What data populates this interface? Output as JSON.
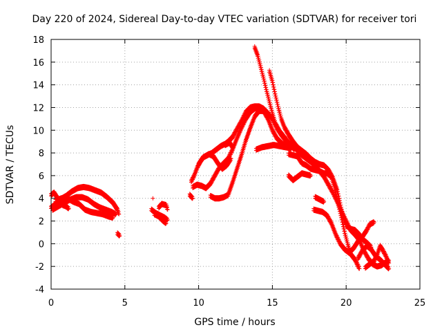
{
  "chart_data": {
    "type": "scatter",
    "title": "Day 220 of 2024, Sidereal Day-to-day VTEC variation (SDTVAR) for receiver tori",
    "xlabel": "GPS time / hours",
    "ylabel": "SDTVAR / TECUs",
    "xlim": [
      0,
      25
    ],
    "ylim": [
      -4,
      18
    ],
    "xticks": [
      0,
      5,
      10,
      15,
      20,
      25
    ],
    "yticks": [
      -4,
      -2,
      0,
      2,
      4,
      6,
      8,
      10,
      12,
      14,
      16,
      18
    ],
    "grid": true,
    "marker": "plus",
    "color": "#ff0000",
    "series": [
      {
        "traces": [
          [
            [
              0.0,
              3.2
            ],
            [
              0.3,
              3.5
            ],
            [
              0.6,
              3.9
            ],
            [
              1.0,
              4.2
            ],
            [
              1.4,
              4.6
            ],
            [
              1.8,
              4.9
            ],
            [
              2.2,
              5.0
            ],
            [
              2.6,
              4.9
            ],
            [
              3.0,
              4.7
            ],
            [
              3.4,
              4.5
            ],
            [
              3.8,
              4.1
            ],
            [
              4.2,
              3.6
            ],
            [
              4.5,
              3.0
            ],
            [
              4.6,
              2.6
            ]
          ],
          [
            [
              0.1,
              3.0
            ],
            [
              0.5,
              3.3
            ],
            [
              0.9,
              3.6
            ],
            [
              1.3,
              3.9
            ],
            [
              1.7,
              4.1
            ],
            [
              2.1,
              4.1
            ],
            [
              2.5,
              3.9
            ],
            [
              2.9,
              3.5
            ],
            [
              3.3,
              3.2
            ],
            [
              3.7,
              3.0
            ],
            [
              4.1,
              2.8
            ],
            [
              4.4,
              2.6
            ]
          ],
          [
            [
              0.3,
              3.8
            ],
            [
              0.7,
              4.0
            ],
            [
              1.1,
              4.0
            ],
            [
              1.5,
              3.7
            ],
            [
              1.9,
              3.5
            ],
            [
              2.3,
              3.0
            ],
            [
              2.7,
              2.8
            ],
            [
              3.1,
              2.7
            ],
            [
              3.5,
              2.6
            ],
            [
              3.9,
              2.4
            ],
            [
              4.2,
              2.3
            ]
          ],
          [
            [
              0.0,
              4.3
            ],
            [
              0.2,
              4.5
            ],
            [
              0.4,
              4.1
            ],
            [
              0.6,
              3.6
            ],
            [
              0.8,
              3.4
            ],
            [
              1.0,
              3.3
            ],
            [
              1.2,
              3.1
            ]
          ],
          [
            [
              4.5,
              0.9
            ],
            [
              4.65,
              0.7
            ]
          ],
          [
            [
              6.9,
              4.0
            ]
          ],
          [
            [
              6.8,
              3.0
            ],
            [
              7.1,
              2.7
            ],
            [
              7.4,
              2.5
            ],
            [
              7.7,
              2.3
            ],
            [
              7.9,
              2.1
            ]
          ],
          [
            [
              7.0,
              2.6
            ],
            [
              7.3,
              2.4
            ],
            [
              7.6,
              2.0
            ],
            [
              7.8,
              1.8
            ]
          ],
          [
            [
              7.3,
              3.2
            ],
            [
              7.5,
              3.5
            ],
            [
              7.8,
              3.4
            ],
            [
              7.9,
              3.0
            ]
          ],
          [
            [
              9.4,
              4.3
            ],
            [
              9.6,
              4.0
            ]
          ],
          [
            [
              9.5,
              5.5
            ],
            [
              9.7,
              6.0
            ],
            [
              9.9,
              6.7
            ],
            [
              10.1,
              7.2
            ],
            [
              10.3,
              7.6
            ],
            [
              10.6,
              7.8
            ],
            [
              10.9,
              8.0
            ],
            [
              11.2,
              8.3
            ],
            [
              11.5,
              8.6
            ],
            [
              11.8,
              8.8
            ],
            [
              12.0,
              9.0
            ],
            [
              12.3,
              9.4
            ],
            [
              12.6,
              10.1
            ],
            [
              12.9,
              10.8
            ],
            [
              13.2,
              11.6
            ],
            [
              13.5,
              12.0
            ],
            [
              13.8,
              12.1
            ],
            [
              14.1,
              12.1
            ],
            [
              14.4,
              11.9
            ],
            [
              14.7,
              11.5
            ],
            [
              15.0,
              11.0
            ],
            [
              15.3,
              10.2
            ],
            [
              15.6,
              9.6
            ],
            [
              15.9,
              9.1
            ],
            [
              16.2,
              8.7
            ],
            [
              16.5,
              8.3
            ]
          ],
          [
            [
              9.6,
              5.0
            ],
            [
              9.9,
              5.2
            ],
            [
              10.2,
              5.1
            ],
            [
              10.5,
              4.9
            ],
            [
              10.8,
              5.3
            ],
            [
              11.1,
              6.0
            ],
            [
              11.4,
              6.7
            ],
            [
              11.7,
              7.1
            ],
            [
              12.0,
              7.5
            ],
            [
              12.3,
              8.3
            ],
            [
              12.6,
              9.3
            ],
            [
              12.9,
              10.2
            ],
            [
              13.2,
              11.0
            ],
            [
              13.5,
              11.6
            ],
            [
              13.8,
              11.9
            ],
            [
              14.1,
              12.0
            ],
            [
              14.4,
              11.7
            ],
            [
              14.7,
              11.0
            ],
            [
              15.0,
              10.0
            ],
            [
              15.3,
              9.3
            ],
            [
              15.6,
              8.9
            ],
            [
              15.9,
              8.6
            ]
          ],
          [
            [
              10.8,
              4.2
            ],
            [
              11.1,
              4.0
            ],
            [
              11.4,
              4.0
            ],
            [
              11.7,
              4.1
            ],
            [
              12.0,
              4.3
            ],
            [
              12.3,
              5.4
            ],
            [
              12.6,
              6.6
            ],
            [
              12.9,
              7.8
            ],
            [
              13.2,
              9.1
            ],
            [
              13.5,
              10.2
            ],
            [
              13.8,
              11.2
            ],
            [
              14.1,
              11.7
            ],
            [
              14.4,
              11.7
            ],
            [
              14.7,
              11.2
            ]
          ],
          [
            [
              10.0,
              7.0
            ],
            [
              10.3,
              7.6
            ],
            [
              10.7,
              7.9
            ],
            [
              11.0,
              7.7
            ],
            [
              11.3,
              7.1
            ],
            [
              11.6,
              6.6
            ],
            [
              11.9,
              6.9
            ],
            [
              12.2,
              7.5
            ]
          ],
          [
            [
              11.8,
              8.7
            ],
            [
              12.1,
              8.9
            ],
            [
              12.3,
              8.5
            ]
          ],
          [
            [
              13.8,
              17.3
            ],
            [
              14.0,
              16.6
            ],
            [
              14.2,
              15.6
            ],
            [
              14.4,
              14.6
            ],
            [
              14.6,
              13.5
            ],
            [
              14.8,
              12.5
            ],
            [
              15.0,
              11.5
            ],
            [
              15.2,
              10.6
            ],
            [
              15.5,
              9.9
            ],
            [
              15.8,
              9.4
            ],
            [
              16.1,
              8.9
            ],
            [
              16.4,
              8.6
            ],
            [
              16.7,
              8.2
            ],
            [
              17.0,
              7.8
            ],
            [
              17.3,
              7.5
            ],
            [
              17.6,
              7.2
            ],
            [
              17.9,
              6.9
            ],
            [
              18.2,
              6.4
            ],
            [
              18.5,
              5.9
            ],
            [
              18.8,
              5.2
            ],
            [
              19.1,
              4.5
            ],
            [
              19.4,
              3.7
            ],
            [
              19.7,
              2.8
            ],
            [
              20.0,
              2.0
            ],
            [
              20.3,
              1.2
            ],
            [
              20.6,
              0.8
            ],
            [
              20.9,
              0.3
            ],
            [
              21.2,
              -0.6
            ],
            [
              21.5,
              -1.3
            ],
            [
              21.8,
              -1.8
            ],
            [
              22.1,
              -2.0
            ],
            [
              22.4,
              -1.9
            ],
            [
              22.7,
              -1.6
            ],
            [
              22.9,
              -1.5
            ]
          ],
          [
            [
              14.8,
              15.2
            ],
            [
              15.0,
              14.3
            ],
            [
              15.2,
              13.1
            ],
            [
              15.4,
              12.0
            ],
            [
              15.6,
              11.0
            ],
            [
              15.8,
              10.3
            ],
            [
              16.1,
              9.6
            ],
            [
              16.4,
              9.0
            ],
            [
              16.7,
              8.5
            ],
            [
              17.0,
              8.2
            ],
            [
              17.3,
              7.9
            ],
            [
              17.6,
              7.5
            ],
            [
              17.9,
              7.2
            ],
            [
              18.2,
              7.0
            ],
            [
              18.5,
              6.9
            ],
            [
              18.8,
              6.5
            ],
            [
              19.1,
              5.8
            ],
            [
              19.4,
              4.7
            ],
            [
              19.6,
              3.5
            ],
            [
              19.8,
              2.4
            ],
            [
              20.0,
              1.6
            ],
            [
              20.3,
              1.3
            ],
            [
              20.6,
              1.2
            ],
            [
              20.9,
              0.8
            ],
            [
              21.1,
              0.4
            ],
            [
              21.4,
              0.1
            ],
            [
              21.7,
              -0.3
            ]
          ],
          [
            [
              16.1,
              7.9
            ],
            [
              16.4,
              7.8
            ],
            [
              16.7,
              7.7
            ],
            [
              17.0,
              7.1
            ],
            [
              17.3,
              6.9
            ],
            [
              17.6,
              6.6
            ],
            [
              17.9,
              6.5
            ],
            [
              18.2,
              6.4
            ],
            [
              18.5,
              6.2
            ],
            [
              18.7,
              6.2
            ],
            [
              19.0,
              5.9
            ],
            [
              19.2,
              5.0
            ],
            [
              19.5,
              3.3
            ],
            [
              19.7,
              2.2
            ],
            [
              19.9,
              1.0
            ],
            [
              20.1,
              0.0
            ],
            [
              20.3,
              -0.9
            ],
            [
              20.6,
              -1.4
            ],
            [
              20.9,
              -2.2
            ]
          ],
          [
            [
              16.1,
              6.0
            ],
            [
              16.4,
              5.6
            ],
            [
              16.7,
              5.9
            ],
            [
              17.0,
              6.2
            ],
            [
              17.3,
              6.1
            ],
            [
              17.6,
              6.0
            ]
          ],
          [
            [
              13.9,
              8.3
            ],
            [
              14.3,
              8.5
            ],
            [
              14.7,
              8.6
            ],
            [
              15.1,
              8.7
            ],
            [
              15.5,
              8.6
            ],
            [
              15.9,
              8.5
            ],
            [
              16.3,
              8.4
            ]
          ],
          [
            [
              17.9,
              4.1
            ],
            [
              18.2,
              3.9
            ],
            [
              18.5,
              3.7
            ]
          ],
          [
            [
              17.8,
              3.0
            ],
            [
              18.1,
              2.9
            ],
            [
              18.4,
              2.8
            ],
            [
              18.7,
              2.5
            ],
            [
              19.0,
              1.8
            ],
            [
              19.3,
              0.8
            ],
            [
              19.6,
              0.0
            ],
            [
              19.9,
              -0.5
            ],
            [
              20.2,
              -0.8
            ],
            [
              20.5,
              -0.4
            ],
            [
              20.8,
              0.2
            ],
            [
              21.1,
              0.6
            ],
            [
              21.4,
              1.2
            ],
            [
              21.6,
              1.7
            ],
            [
              21.9,
              1.9
            ]
          ],
          [
            [
              20.8,
              -1.3
            ],
            [
              21.1,
              -0.6
            ],
            [
              21.4,
              -0.2
            ],
            [
              21.7,
              -0.5
            ],
            [
              22.0,
              -1.1
            ],
            [
              22.3,
              -1.4
            ],
            [
              22.6,
              -1.8
            ],
            [
              22.9,
              -2.2
            ]
          ],
          [
            [
              21.3,
              -2.1
            ],
            [
              21.6,
              -1.8
            ],
            [
              21.9,
              -1.5
            ],
            [
              22.1,
              -1.0
            ],
            [
              22.3,
              -0.2
            ],
            [
              22.5,
              -0.6
            ],
            [
              22.7,
              -1.1
            ],
            [
              22.9,
              -1.7
            ]
          ]
        ]
      }
    ]
  }
}
